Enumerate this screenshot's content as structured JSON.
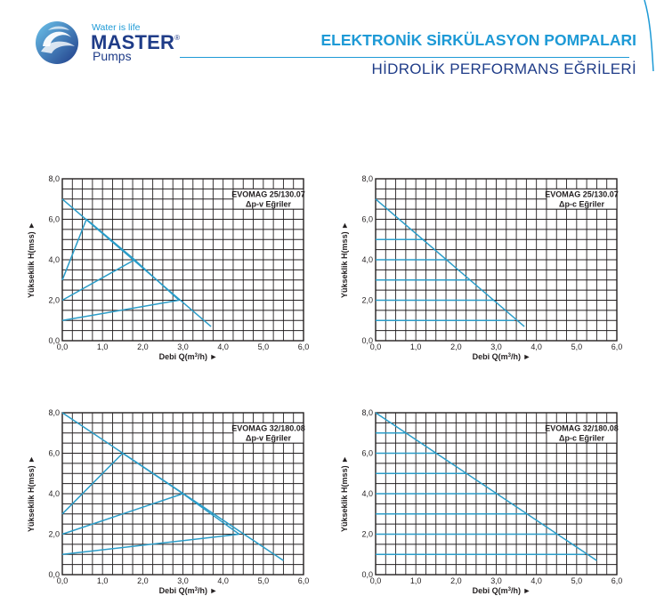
{
  "header": {
    "tagline": "Water is life",
    "brand": "MASTER",
    "brand_mark": "®",
    "sub": "Pumps",
    "title": "ELEKTRONİK SİRKÜLASYON POMPALARI",
    "subtitle": "HİDROLİK PERFORMANS EĞRİLERİ",
    "colors": {
      "accent": "#1e9ad6",
      "brand": "#1f3c88",
      "curve": "#2a9cc8"
    }
  },
  "chart_data": [
    {
      "type": "line",
      "model": "EVOMAG 25/130.07",
      "mode": "Δp-v Eğriler",
      "xlabel_main": "Debi Q(m",
      "xlabel_sup": "3",
      "xlabel_end": "/h) ►",
      "ylabel": "Yükseklik H(mss) ►",
      "xlim": [
        0,
        6
      ],
      "ylim": [
        0,
        8
      ],
      "x_ticks": [
        "0,0",
        "1,0",
        "2,0",
        "3,0",
        "4,0",
        "5,0",
        "6,0"
      ],
      "y_ticks": [
        "0,0",
        "2,0",
        "4,0",
        "6,0",
        "8,0"
      ],
      "grid": true,
      "series": [
        {
          "x": [
            0,
            3.7
          ],
          "y": [
            7.0,
            0.7
          ]
        },
        {
          "x": [
            0,
            0.6,
            1.8,
            2.9
          ],
          "y": [
            3.0,
            6.0,
            4.0,
            2.0
          ]
        },
        {
          "x": [
            0,
            1.8
          ],
          "y": [
            2.0,
            4.0
          ]
        },
        {
          "x": [
            0,
            2.9
          ],
          "y": [
            1.0,
            2.0
          ]
        }
      ]
    },
    {
      "type": "line",
      "model": "EVOMAG 25/130.07",
      "mode": "Δp-c Eğriler",
      "xlabel_main": "Debi Q(m",
      "xlabel_sup": "3",
      "xlabel_end": "/h) ►",
      "ylabel": "Yükseklik H(mss) ►",
      "xlim": [
        0,
        6
      ],
      "ylim": [
        0,
        8
      ],
      "x_ticks": [
        "0,0",
        "1,0",
        "2,0",
        "3,0",
        "4,0",
        "5,0",
        "6,0"
      ],
      "y_ticks": [
        "0,0",
        "2,0",
        "4,0",
        "6,0",
        "8,0"
      ],
      "grid": true,
      "series": [
        {
          "x": [
            0,
            3.7
          ],
          "y": [
            7.0,
            0.7
          ]
        },
        {
          "x": [
            0,
            1.2
          ],
          "y": [
            5.0,
            5.0
          ]
        },
        {
          "x": [
            0,
            1.8
          ],
          "y": [
            4.0,
            4.0
          ]
        },
        {
          "x": [
            0,
            2.35
          ],
          "y": [
            3.0,
            3.0
          ]
        },
        {
          "x": [
            0,
            2.95
          ],
          "y": [
            2.0,
            2.0
          ]
        },
        {
          "x": [
            0,
            3.45
          ],
          "y": [
            1.0,
            1.0
          ]
        }
      ]
    },
    {
      "type": "line",
      "model": "EVOMAG 32/180.08",
      "mode": "Δp-v Eğriler",
      "xlabel_main": "Debi Q(m",
      "xlabel_sup": "3",
      "xlabel_end": "/h) ►",
      "ylabel": "Yükseklik H(mss) ►",
      "xlim": [
        0,
        6
      ],
      "ylim": [
        0,
        8
      ],
      "x_ticks": [
        "0,0",
        "1,0",
        "2,0",
        "3,0",
        "4,0",
        "5,0",
        "6,0"
      ],
      "y_ticks": [
        "0,0",
        "2,0",
        "4,0",
        "6,0",
        "8,0"
      ],
      "grid": true,
      "series": [
        {
          "x": [
            0,
            5.5
          ],
          "y": [
            8.0,
            0.7
          ]
        },
        {
          "x": [
            0,
            1.5,
            3.0,
            4.4
          ],
          "y": [
            3.0,
            6.0,
            4.0,
            2.0
          ]
        },
        {
          "x": [
            0,
            3.0
          ],
          "y": [
            2.0,
            4.0
          ]
        },
        {
          "x": [
            0,
            4.4
          ],
          "y": [
            1.0,
            2.0
          ]
        }
      ]
    },
    {
      "type": "line",
      "model": "EVOMAG 32/180.08",
      "mode": "Δp-c Eğriler",
      "xlabel_main": "Debi Q(m",
      "xlabel_sup": "3",
      "xlabel_end": "/h) ►",
      "ylabel": "Yükseklik H(mss) ►",
      "xlim": [
        0,
        6
      ],
      "ylim": [
        0,
        8
      ],
      "x_ticks": [
        "0,0",
        "1,0",
        "2,0",
        "3,0",
        "4,0",
        "5,0",
        "6,0"
      ],
      "y_ticks": [
        "0,0",
        "2,0",
        "4,0",
        "6,0",
        "8,0"
      ],
      "grid": true,
      "series": [
        {
          "x": [
            0,
            5.5
          ],
          "y": [
            8.0,
            0.7
          ]
        },
        {
          "x": [
            0,
            0.75
          ],
          "y": [
            7.0,
            7.0
          ]
        },
        {
          "x": [
            0,
            1.5
          ],
          "y": [
            6.0,
            6.0
          ]
        },
        {
          "x": [
            0,
            2.25
          ],
          "y": [
            5.0,
            5.0
          ]
        },
        {
          "x": [
            0,
            3.0
          ],
          "y": [
            4.0,
            4.0
          ]
        },
        {
          "x": [
            0,
            3.75
          ],
          "y": [
            3.0,
            3.0
          ]
        },
        {
          "x": [
            0,
            4.5
          ],
          "y": [
            2.0,
            2.0
          ]
        },
        {
          "x": [
            0,
            5.2
          ],
          "y": [
            1.0,
            1.0
          ]
        }
      ]
    }
  ]
}
